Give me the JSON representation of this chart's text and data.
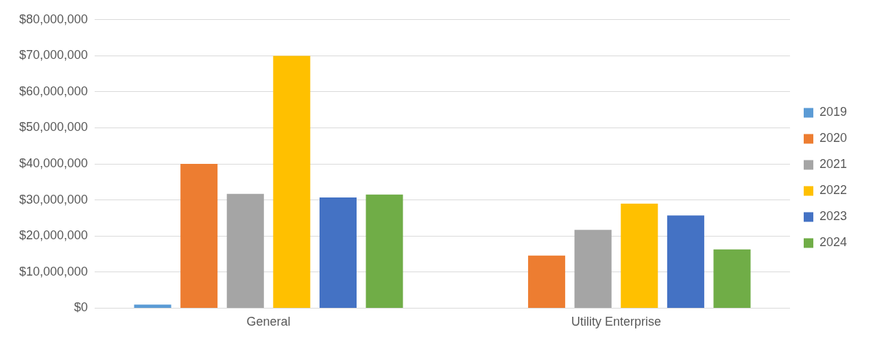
{
  "chart_data": {
    "type": "bar",
    "categories": [
      "General",
      "Utility Enterprise"
    ],
    "series": [
      {
        "name": "2019",
        "color": "#5b9bd5",
        "values": [
          1000000,
          0
        ]
      },
      {
        "name": "2020",
        "color": "#ed7d31",
        "values": [
          40000000,
          14600000
        ]
      },
      {
        "name": "2021",
        "color": "#a5a5a5",
        "values": [
          31700000,
          21700000
        ]
      },
      {
        "name": "2022",
        "color": "#ffc000",
        "values": [
          70000000,
          29000000
        ]
      },
      {
        "name": "2023",
        "color": "#4472c4",
        "values": [
          30700000,
          25700000
        ]
      },
      {
        "name": "2024",
        "color": "#70ad47",
        "values": [
          31500000,
          16300000
        ]
      }
    ],
    "ylim": [
      0,
      80000000
    ],
    "yticks": [
      {
        "value": 0,
        "label": "$0"
      },
      {
        "value": 10000000,
        "label": "$10,000,000"
      },
      {
        "value": 20000000,
        "label": "$20,000,000"
      },
      {
        "value": 30000000,
        "label": "$30,000,000"
      },
      {
        "value": 40000000,
        "label": "$40,000,000"
      },
      {
        "value": 50000000,
        "label": "$50,000,000"
      },
      {
        "value": 60000000,
        "label": "$60,000,000"
      },
      {
        "value": 70000000,
        "label": "$70,000,000"
      },
      {
        "value": 80000000,
        "label": "$80,000,000"
      }
    ],
    "grid": "y",
    "legend": "right"
  }
}
